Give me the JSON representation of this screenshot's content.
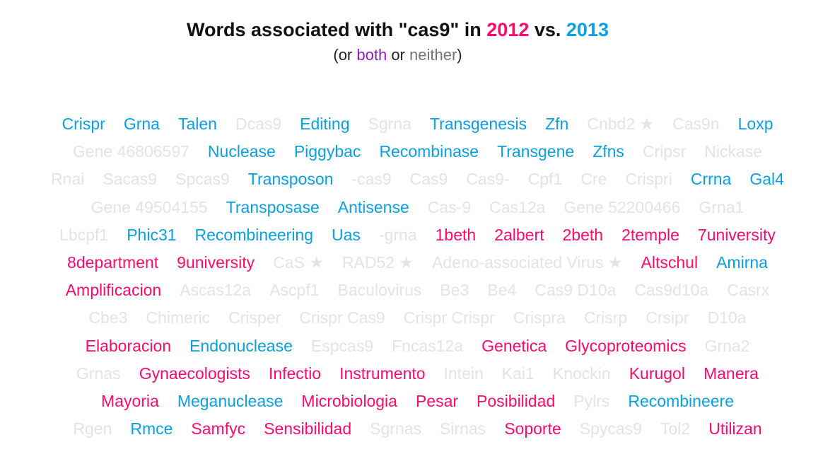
{
  "title": {
    "prefix": "Words associated with \"cas9\" in ",
    "year_a": "2012",
    "middle": " vs. ",
    "year_b": "2013"
  },
  "subtitle": {
    "open": "(or ",
    "both": "both",
    "or": " or ",
    "neither": "neither",
    "close": ")"
  },
  "colors": {
    "2012": "#ff0a6c",
    "2013": "#0aa0e6",
    "both": "#8e1cb8",
    "neither": "#e2e4e7"
  },
  "rows": [
    [
      {
        "w": "Crispr",
        "c": "2013"
      },
      {
        "w": "Grna",
        "c": "2013"
      },
      {
        "w": "Talen",
        "c": "2013"
      },
      {
        "w": "Dcas9",
        "c": "neither"
      },
      {
        "w": "Editing",
        "c": "2013"
      },
      {
        "w": "Sgrna",
        "c": "neither"
      },
      {
        "w": "Transgenesis",
        "c": "2013"
      },
      {
        "w": "Zfn",
        "c": "2013"
      },
      {
        "w": "Cnbd2 ★",
        "c": "neither"
      },
      {
        "w": "Cas9n",
        "c": "neither"
      },
      {
        "w": "Loxp",
        "c": "2013"
      }
    ],
    [
      {
        "w": "Gene 46806597",
        "c": "neither"
      },
      {
        "w": "Nuclease",
        "c": "2013"
      },
      {
        "w": "Piggybac",
        "c": "2013"
      },
      {
        "w": "Recombinase",
        "c": "2013"
      },
      {
        "w": "Transgene",
        "c": "2013"
      },
      {
        "w": "Zfns",
        "c": "2013"
      },
      {
        "w": "Cripsr",
        "c": "neither"
      },
      {
        "w": "Nickase",
        "c": "neither"
      }
    ],
    [
      {
        "w": "Rnai",
        "c": "neither"
      },
      {
        "w": "Sacas9",
        "c": "neither"
      },
      {
        "w": "Spcas9",
        "c": "neither"
      },
      {
        "w": "Transposon",
        "c": "2013"
      },
      {
        "w": "-cas9",
        "c": "neither"
      },
      {
        "w": "Cas9",
        "c": "neither"
      },
      {
        "w": "Cas9-",
        "c": "neither"
      },
      {
        "w": "Cpf1",
        "c": "neither"
      },
      {
        "w": "Cre",
        "c": "neither"
      },
      {
        "w": "Crispri",
        "c": "neither"
      },
      {
        "w": "Crrna",
        "c": "2013"
      },
      {
        "w": "Gal4",
        "c": "2013"
      }
    ],
    [
      {
        "w": "Gene 49504155",
        "c": "neither"
      },
      {
        "w": "Transposase",
        "c": "2013"
      },
      {
        "w": "Antisense",
        "c": "2013"
      },
      {
        "w": "Cas-9",
        "c": "neither"
      },
      {
        "w": "Cas12a",
        "c": "neither"
      },
      {
        "w": "Gene 52200466",
        "c": "neither"
      },
      {
        "w": "Grna1",
        "c": "neither"
      }
    ],
    [
      {
        "w": "Lbcpf1",
        "c": "neither"
      },
      {
        "w": "Phic31",
        "c": "2013"
      },
      {
        "w": "Recombineering",
        "c": "2013"
      },
      {
        "w": "Uas",
        "c": "2013"
      },
      {
        "w": "-grna",
        "c": "neither"
      },
      {
        "w": "1beth",
        "c": "2012"
      },
      {
        "w": "2albert",
        "c": "2012"
      },
      {
        "w": "2beth",
        "c": "2012"
      },
      {
        "w": "2temple",
        "c": "2012"
      },
      {
        "w": "7university",
        "c": "2012"
      }
    ],
    [
      {
        "w": "8department",
        "c": "2012"
      },
      {
        "w": "9university",
        "c": "2012"
      },
      {
        "w": "CaS ★",
        "c": "neither"
      },
      {
        "w": "RAD52 ★",
        "c": "neither"
      },
      {
        "w": "Adeno-associated Virus ★",
        "c": "neither"
      },
      {
        "w": "Altschul",
        "c": "2012"
      },
      {
        "w": "Amirna",
        "c": "2013"
      }
    ],
    [
      {
        "w": "Amplificacion",
        "c": "2012"
      },
      {
        "w": "Ascas12a",
        "c": "neither"
      },
      {
        "w": "Ascpf1",
        "c": "neither"
      },
      {
        "w": "Baculovirus",
        "c": "neither"
      },
      {
        "w": "Be3",
        "c": "neither"
      },
      {
        "w": "Be4",
        "c": "neither"
      },
      {
        "w": "Cas9 D10a",
        "c": "neither"
      },
      {
        "w": "Cas9d10a",
        "c": "neither"
      },
      {
        "w": "Casrx",
        "c": "neither"
      }
    ],
    [
      {
        "w": "Cbe3",
        "c": "neither"
      },
      {
        "w": "Chimeric",
        "c": "neither"
      },
      {
        "w": "Crisper",
        "c": "neither"
      },
      {
        "w": "Crispr Cas9",
        "c": "neither"
      },
      {
        "w": "Crispr Crispr",
        "c": "neither"
      },
      {
        "w": "Crispra",
        "c": "neither"
      },
      {
        "w": "Crisrp",
        "c": "neither"
      },
      {
        "w": "Crsipr",
        "c": "neither"
      },
      {
        "w": "D10a",
        "c": "neither"
      }
    ],
    [
      {
        "w": "Elaboracion",
        "c": "2012"
      },
      {
        "w": "Endonuclease",
        "c": "2013"
      },
      {
        "w": "Espcas9",
        "c": "neither"
      },
      {
        "w": "Fncas12a",
        "c": "neither"
      },
      {
        "w": "Genetica",
        "c": "2012"
      },
      {
        "w": "Glycoproteomics",
        "c": "2012"
      },
      {
        "w": "Grna2",
        "c": "neither"
      }
    ],
    [
      {
        "w": "Grnas",
        "c": "neither"
      },
      {
        "w": "Gynaecologists",
        "c": "2012"
      },
      {
        "w": "Infectio",
        "c": "2012"
      },
      {
        "w": "Instrumento",
        "c": "2012"
      },
      {
        "w": "Intein",
        "c": "neither"
      },
      {
        "w": "Kai1",
        "c": "neither"
      },
      {
        "w": "Knockin",
        "c": "neither"
      },
      {
        "w": "Kurugol",
        "c": "2012"
      },
      {
        "w": "Manera",
        "c": "2012"
      }
    ],
    [
      {
        "w": "Mayoria",
        "c": "2012"
      },
      {
        "w": "Meganuclease",
        "c": "2013"
      },
      {
        "w": "Microbiologia",
        "c": "2012"
      },
      {
        "w": "Pesar",
        "c": "2012"
      },
      {
        "w": "Posibilidad",
        "c": "2012"
      },
      {
        "w": "Pylrs",
        "c": "neither"
      },
      {
        "w": "Recombineere",
        "c": "2013"
      }
    ],
    [
      {
        "w": "Rgen",
        "c": "neither"
      },
      {
        "w": "Rmce",
        "c": "2013"
      },
      {
        "w": "Samfyc",
        "c": "2012"
      },
      {
        "w": "Sensibilidad",
        "c": "2012"
      },
      {
        "w": "Sgrnas",
        "c": "neither"
      },
      {
        "w": "Sirnas",
        "c": "neither"
      },
      {
        "w": "Soporte",
        "c": "2012"
      },
      {
        "w": "Spycas9",
        "c": "neither"
      },
      {
        "w": "Tol2",
        "c": "neither"
      },
      {
        "w": "Utilizan",
        "c": "2012"
      }
    ]
  ]
}
